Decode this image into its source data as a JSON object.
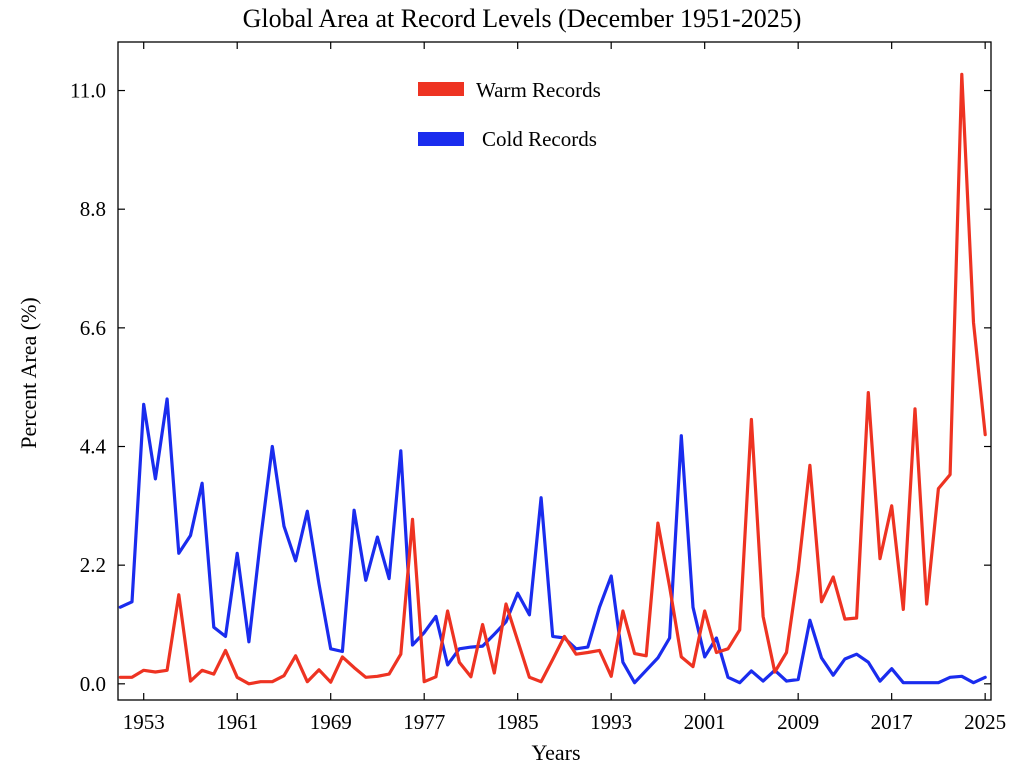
{
  "chart_data": {
    "type": "line",
    "title": "Global Area at Record Levels (December 1951-2025)",
    "xlabel": "Years",
    "ylabel": "Percent Area (%)",
    "xlim": [
      1950.8,
      2025.5
    ],
    "ylim": [
      -0.3,
      11.9
    ],
    "xticks": [
      1953,
      1961,
      1969,
      1977,
      1985,
      1993,
      2001,
      2009,
      2017,
      2025
    ],
    "xtick_labels": [
      "1953",
      "1961",
      "1969",
      "1977",
      "1985",
      "1993",
      "2001",
      "2009",
      "2017",
      "2025"
    ],
    "yticks": [
      0.0,
      2.2,
      4.4,
      6.6,
      8.8,
      11.0
    ],
    "ytick_labels": [
      "0.0",
      "2.2",
      "4.4",
      "6.6",
      "8.8",
      "11.0"
    ],
    "legend_position": "top-center",
    "x": [
      1951,
      1952,
      1953,
      1954,
      1955,
      1956,
      1957,
      1958,
      1959,
      1960,
      1961,
      1962,
      1963,
      1964,
      1965,
      1966,
      1967,
      1968,
      1969,
      1970,
      1971,
      1972,
      1973,
      1974,
      1975,
      1976,
      1977,
      1978,
      1979,
      1980,
      1981,
      1982,
      1983,
      1984,
      1985,
      1986,
      1987,
      1988,
      1989,
      1990,
      1991,
      1992,
      1993,
      1994,
      1995,
      1996,
      1997,
      1998,
      1999,
      2000,
      2001,
      2002,
      2003,
      2004,
      2005,
      2006,
      2007,
      2008,
      2009,
      2010,
      2011,
      2012,
      2013,
      2014,
      2015,
      2016,
      2017,
      2018,
      2019,
      2020,
      2021,
      2022,
      2023,
      2024,
      2025
    ],
    "series": [
      {
        "name": "Warm Records",
        "color": "#ee3322",
        "values": [
          0.12,
          0.12,
          0.25,
          0.22,
          0.25,
          1.65,
          0.05,
          0.25,
          0.18,
          0.62,
          0.12,
          0.0,
          0.04,
          0.04,
          0.15,
          0.52,
          0.04,
          0.26,
          0.03,
          0.5,
          0.3,
          0.12,
          0.14,
          0.18,
          0.55,
          3.05,
          0.04,
          0.13,
          1.35,
          0.4,
          0.13,
          1.1,
          0.2,
          1.48,
          0.8,
          0.12,
          0.04,
          0.45,
          0.88,
          0.55,
          0.58,
          0.62,
          0.14,
          1.35,
          0.56,
          0.52,
          2.98,
          1.8,
          0.5,
          0.32,
          1.35,
          0.58,
          0.65,
          1.0,
          4.9,
          1.25,
          0.22,
          0.58,
          2.1,
          4.05,
          1.52,
          1.98,
          1.2,
          1.22,
          5.4,
          2.32,
          3.3,
          1.38,
          5.1,
          1.48,
          3.62,
          3.88,
          11.3,
          6.7,
          4.62
        ]
      },
      {
        "name": "Cold Records",
        "color": "#1a2cee",
        "values": [
          1.42,
          1.52,
          5.18,
          3.8,
          5.28,
          2.42,
          2.75,
          3.72,
          1.05,
          0.88,
          2.42,
          0.78,
          2.68,
          4.4,
          2.92,
          2.28,
          3.2,
          1.85,
          0.65,
          0.6,
          3.22,
          1.92,
          2.72,
          1.95,
          4.32,
          0.72,
          0.95,
          1.25,
          0.35,
          0.65,
          0.68,
          0.7,
          0.92,
          1.15,
          1.68,
          1.28,
          3.45,
          0.88,
          0.85,
          0.65,
          0.68,
          1.42,
          2.0,
          0.4,
          0.02,
          0.25,
          0.48,
          0.85,
          4.6,
          1.42,
          0.5,
          0.85,
          0.12,
          0.02,
          0.24,
          0.05,
          0.25,
          0.05,
          0.08,
          1.18,
          0.48,
          0.16,
          0.46,
          0.55,
          0.4,
          0.05,
          0.28,
          0.02,
          0.02,
          0.02,
          0.02,
          0.12,
          0.14,
          0.02,
          0.12
        ]
      }
    ]
  }
}
